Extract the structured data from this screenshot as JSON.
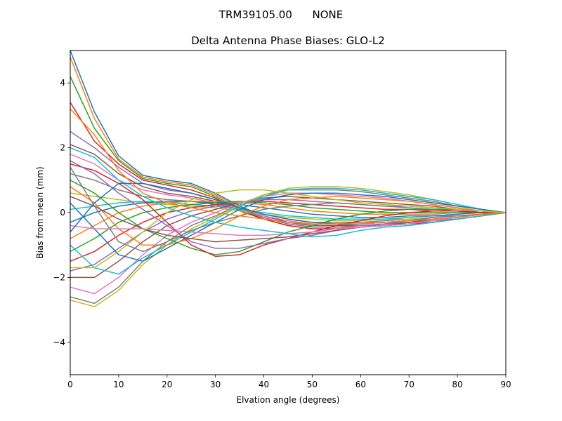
{
  "figure": {
    "suptitle": "TRM39105.00      NONE"
  },
  "chart_data": {
    "type": "line",
    "title": "Delta Antenna Phase Biases: GLO-L2",
    "xlabel": "Elvation angle (degrees)",
    "ylabel": "Bias from mean (mm)",
    "xlim": [
      0,
      90
    ],
    "ylim": [
      -5,
      5
    ],
    "xticks": [
      0,
      10,
      20,
      30,
      40,
      50,
      60,
      70,
      80,
      90
    ],
    "yticks": [
      -4,
      -2,
      0,
      2,
      4
    ],
    "xtick_labels": [
      "0",
      "10",
      "20",
      "30",
      "40",
      "50",
      "60",
      "70",
      "80",
      "90"
    ],
    "ytick_labels": [
      "−4",
      "−2",
      "0",
      "2",
      "4"
    ],
    "grid": false,
    "legend": "none",
    "x": [
      0,
      5,
      10,
      15,
      20,
      25,
      30,
      35,
      40,
      45,
      50,
      55,
      60,
      65,
      70,
      75,
      80,
      85,
      90
    ],
    "colors": [
      "#1f77b4",
      "#ff7f0e",
      "#2ca02c",
      "#d62728",
      "#9467bd",
      "#8c564b",
      "#e377c2",
      "#7f7f7f",
      "#bcbd22",
      "#17becf"
    ],
    "series": [
      {
        "values": [
          5.0,
          3.1,
          1.75,
          1.15,
          1.0,
          0.9,
          0.6,
          0.2,
          -0.1,
          -0.3,
          -0.4,
          -0.4,
          -0.4,
          -0.35,
          -0.3,
          -0.25,
          -0.2,
          -0.1,
          0
        ]
      },
      {
        "values": [
          4.8,
          2.9,
          1.65,
          1.1,
          0.95,
          0.85,
          0.55,
          0.15,
          -0.15,
          -0.35,
          -0.45,
          -0.45,
          -0.45,
          -0.4,
          -0.35,
          -0.3,
          -0.2,
          -0.1,
          0
        ]
      },
      {
        "values": [
          4.2,
          2.6,
          1.6,
          1.05,
          0.9,
          0.8,
          0.5,
          0.1,
          -0.2,
          -0.4,
          -0.5,
          -0.5,
          -0.45,
          -0.4,
          -0.35,
          -0.3,
          -0.2,
          -0.1,
          0
        ]
      },
      {
        "values": [
          3.4,
          2.2,
          1.5,
          1.0,
          0.85,
          0.7,
          0.45,
          0.05,
          -0.2,
          -0.4,
          -0.5,
          -0.5,
          -0.45,
          -0.4,
          -0.35,
          -0.3,
          -0.2,
          -0.1,
          0
        ]
      },
      {
        "values": [
          2.5,
          2.0,
          1.4,
          0.9,
          0.7,
          0.6,
          0.4,
          0.1,
          -0.15,
          -0.35,
          -0.45,
          -0.45,
          -0.4,
          -0.35,
          -0.3,
          -0.25,
          -0.2,
          -0.1,
          0
        ]
      },
      {
        "values": [
          2.1,
          1.8,
          1.2,
          0.8,
          0.6,
          0.5,
          0.35,
          0.1,
          -0.1,
          -0.3,
          -0.4,
          -0.4,
          -0.35,
          -0.3,
          -0.25,
          -0.2,
          -0.15,
          -0.05,
          0
        ]
      },
      {
        "values": [
          1.8,
          1.5,
          1.0,
          0.7,
          0.55,
          0.45,
          0.3,
          0.1,
          -0.1,
          -0.25,
          -0.35,
          -0.35,
          -0.3,
          -0.3,
          -0.25,
          -0.2,
          -0.15,
          -0.05,
          0
        ]
      },
      {
        "values": [
          1.2,
          1.0,
          0.7,
          0.5,
          0.4,
          0.35,
          0.25,
          0.1,
          -0.05,
          -0.2,
          -0.3,
          -0.3,
          -0.3,
          -0.25,
          -0.2,
          -0.15,
          -0.1,
          -0.05,
          0
        ]
      },
      {
        "values": [
          0.6,
          0.5,
          0.4,
          0.3,
          0.25,
          0.2,
          0.15,
          0.05,
          -0.05,
          -0.15,
          -0.2,
          -0.25,
          -0.25,
          -0.2,
          -0.2,
          -0.15,
          -0.1,
          -0.05,
          0
        ]
      },
      {
        "values": [
          0.1,
          0.2,
          0.3,
          0.35,
          0.3,
          0.25,
          0.2,
          0.1,
          0.0,
          -0.1,
          -0.15,
          -0.2,
          -0.2,
          -0.2,
          -0.15,
          -0.1,
          -0.1,
          -0.05,
          0
        ]
      },
      {
        "values": [
          -0.3,
          0.0,
          0.2,
          0.3,
          0.35,
          0.35,
          0.3,
          0.25,
          0.15,
          0.05,
          -0.05,
          -0.1,
          -0.15,
          -0.15,
          -0.1,
          -0.1,
          -0.05,
          0.0,
          0
        ]
      },
      {
        "values": [
          -0.8,
          -0.4,
          0.0,
          0.2,
          0.3,
          0.35,
          0.35,
          0.3,
          0.25,
          0.15,
          0.05,
          0.0,
          -0.05,
          -0.05,
          -0.05,
          -0.05,
          0.0,
          0.0,
          0
        ]
      },
      {
        "values": [
          -1.2,
          -0.8,
          -0.3,
          0.0,
          0.15,
          0.25,
          0.3,
          0.35,
          0.3,
          0.25,
          0.15,
          0.1,
          0.05,
          0.0,
          0.0,
          0.0,
          0.0,
          0.0,
          0
        ]
      },
      {
        "values": [
          -1.5,
          -1.2,
          -0.7,
          -0.3,
          0.0,
          0.15,
          0.25,
          0.3,
          0.35,
          0.3,
          0.25,
          0.2,
          0.15,
          0.1,
          0.1,
          0.05,
          0.05,
          0.0,
          0
        ]
      },
      {
        "values": [
          -1.8,
          -1.6,
          -1.1,
          -0.6,
          -0.2,
          0.05,
          0.2,
          0.3,
          0.4,
          0.4,
          0.35,
          0.3,
          0.25,
          0.2,
          0.15,
          0.1,
          0.05,
          0.05,
          0
        ]
      },
      {
        "values": [
          -2.0,
          -2.0,
          -1.5,
          -0.9,
          -0.4,
          -0.1,
          0.1,
          0.3,
          0.45,
          0.5,
          0.45,
          0.4,
          0.35,
          0.3,
          0.25,
          0.2,
          0.1,
          0.05,
          0
        ]
      },
      {
        "values": [
          -2.3,
          -2.5,
          -2.0,
          -1.3,
          -0.7,
          -0.3,
          0.0,
          0.3,
          0.5,
          0.6,
          0.6,
          0.55,
          0.5,
          0.45,
          0.35,
          0.25,
          0.15,
          0.05,
          0
        ]
      },
      {
        "values": [
          -2.6,
          -2.8,
          -2.3,
          -1.5,
          -0.9,
          -0.4,
          -0.1,
          0.25,
          0.55,
          0.7,
          0.7,
          0.7,
          0.65,
          0.55,
          0.45,
          0.35,
          0.2,
          0.1,
          0
        ]
      },
      {
        "values": [
          -2.7,
          -2.9,
          -2.4,
          -1.6,
          -1.0,
          -0.5,
          -0.15,
          0.25,
          0.55,
          0.75,
          0.8,
          0.8,
          0.75,
          0.65,
          0.55,
          0.4,
          0.25,
          0.1,
          0
        ]
      },
      {
        "values": [
          -1.0,
          -1.7,
          -1.9,
          -1.4,
          -1.0,
          -0.6,
          -0.2,
          0.2,
          0.5,
          0.7,
          0.75,
          0.75,
          0.7,
          0.6,
          0.5,
          0.4,
          0.25,
          0.1,
          0
        ]
      },
      {
        "values": [
          0.3,
          -0.5,
          -1.3,
          -1.5,
          -1.1,
          -0.7,
          -0.3,
          0.1,
          0.4,
          0.55,
          0.6,
          0.6,
          0.55,
          0.5,
          0.4,
          0.3,
          0.2,
          0.1,
          0
        ]
      },
      {
        "values": [
          0.8,
          0.3,
          -0.5,
          -1.0,
          -1.0,
          -0.8,
          -0.5,
          -0.1,
          0.2,
          0.4,
          0.45,
          0.5,
          0.45,
          0.4,
          0.35,
          0.25,
          0.15,
          0.05,
          0
        ]
      },
      {
        "values": [
          1.0,
          0.6,
          0.0,
          -0.5,
          -0.8,
          -1.1,
          -1.3,
          -1.2,
          -0.9,
          -0.6,
          -0.4,
          -0.2,
          -0.05,
          0.05,
          0.1,
          0.1,
          0.1,
          0.05,
          0
        ]
      },
      {
        "values": [
          1.5,
          1.3,
          0.9,
          0.4,
          -0.3,
          -1.0,
          -1.35,
          -1.3,
          -1.0,
          -0.8,
          -0.6,
          -0.4,
          -0.25,
          -0.1,
          0.0,
          0.05,
          0.05,
          0.0,
          0
        ]
      },
      {
        "values": [
          1.6,
          1.2,
          0.6,
          0.1,
          -0.4,
          -0.9,
          -1.1,
          -1.1,
          -0.95,
          -0.8,
          -0.7,
          -0.55,
          -0.45,
          -0.35,
          -0.25,
          -0.15,
          -0.1,
          -0.05,
          0
        ]
      },
      {
        "values": [
          0.5,
          0.2,
          -0.2,
          -0.5,
          -0.7,
          -0.8,
          -0.9,
          -0.85,
          -0.8,
          -0.75,
          -0.65,
          -0.55,
          -0.45,
          -0.4,
          -0.3,
          -0.2,
          -0.15,
          -0.05,
          0
        ]
      },
      {
        "values": [
          -0.4,
          -0.5,
          -0.5,
          -0.5,
          -0.55,
          -0.6,
          -0.65,
          -0.7,
          -0.7,
          -0.65,
          -0.6,
          -0.5,
          -0.45,
          -0.4,
          -0.35,
          -0.25,
          -0.15,
          -0.05,
          0
        ]
      },
      {
        "values": [
          1.4,
          0.2,
          -0.9,
          -1.2,
          -0.9,
          -0.55,
          -0.3,
          -0.1,
          0.1,
          0.2,
          0.25,
          0.3,
          0.25,
          0.2,
          0.2,
          0.15,
          0.1,
          0.05,
          0
        ]
      },
      {
        "values": [
          -1.7,
          -1.7,
          -1.2,
          -0.6,
          0.0,
          0.4,
          0.6,
          0.7,
          0.7,
          0.6,
          0.5,
          0.4,
          0.3,
          0.25,
          0.2,
          0.15,
          0.1,
          0.05,
          0
        ]
      },
      {
        "values": [
          2.0,
          1.7,
          1.0,
          0.5,
          0.15,
          -0.1,
          -0.3,
          -0.45,
          -0.55,
          -0.65,
          -0.75,
          -0.7,
          -0.55,
          -0.45,
          -0.4,
          -0.3,
          -0.2,
          -0.1,
          0
        ]
      },
      {
        "values": [
          -0.6,
          0.3,
          0.9,
          0.9,
          0.75,
          0.6,
          0.4,
          0.15,
          -0.05,
          -0.2,
          -0.3,
          -0.35,
          -0.35,
          -0.3,
          -0.25,
          -0.2,
          -0.15,
          -0.05,
          0
        ]
      },
      {
        "values": [
          3.2,
          2.4,
          1.3,
          0.6,
          0.3,
          0.15,
          0.0,
          -0.1,
          -0.2,
          -0.3,
          -0.35,
          -0.35,
          -0.35,
          -0.3,
          -0.25,
          -0.2,
          -0.15,
          -0.05,
          0
        ]
      }
    ]
  }
}
